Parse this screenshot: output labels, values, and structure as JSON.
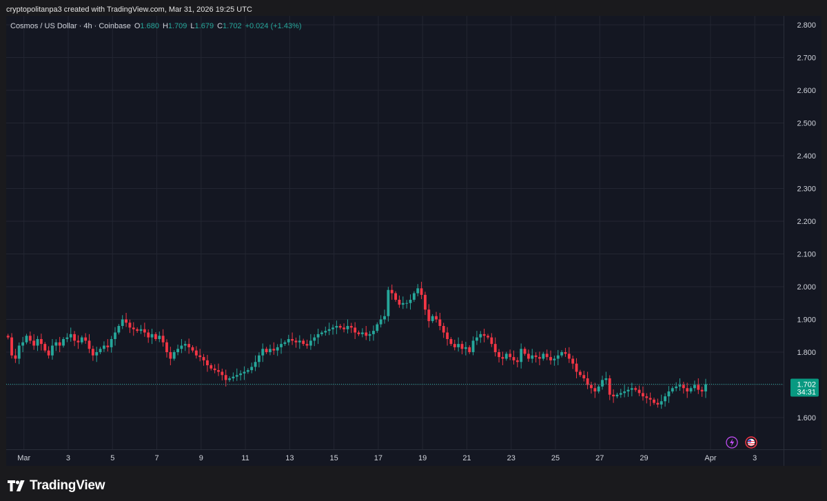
{
  "credit": "cryptopolitanpa3 created with TradingView.com, Mar 31, 2026 19:25 UTC",
  "brand": "TradingView",
  "icons": {
    "logo": "tradingview-logo-icon",
    "flash": "lightning-icon",
    "flag": "us-flag-icon"
  },
  "colors": {
    "up": "#26a69a",
    "down": "#f23645",
    "bg": "#141722",
    "grid": "#232632",
    "text": "#d1d4dc",
    "muted": "#b2b5be",
    "price_label_bg": "#089981",
    "flash": "#c04cf2",
    "flag": "#f23645"
  },
  "legend": {
    "symbol": "Cosmos / US Dollar · 4h · Coinbase",
    "o_label": "O",
    "o_value": "1.680",
    "h_label": "H",
    "h_value": "1.709",
    "l_label": "L",
    "l_value": "1.679",
    "c_label": "C",
    "c_value": "1.702",
    "change": "+0.024 (+1.43%)"
  },
  "price_label": {
    "price": "1.702",
    "countdown": "34:31"
  },
  "chart_data": {
    "type": "candlestick",
    "y_ticks": [
      "2.800",
      "2.700",
      "2.600",
      "2.500",
      "2.400",
      "2.300",
      "2.200",
      "2.100",
      "2.000",
      "1.900",
      "1.800",
      "1.700",
      "1.600"
    ],
    "ylim": [
      1.5,
      2.81
    ],
    "x_ticks": [
      "Mar",
      "3",
      "5",
      "7",
      "9",
      "11",
      "13",
      "15",
      "17",
      "19",
      "21",
      "23",
      "25",
      "27",
      "29",
      "Apr",
      "3"
    ],
    "x_tick_days": [
      1,
      3,
      5,
      7,
      9,
      11,
      13,
      15,
      17,
      19,
      21,
      23,
      25,
      27,
      29,
      32,
      34
    ],
    "x_day_start": 0.2,
    "x_day_end": 35.3,
    "current_price": 1.702,
    "candles_per_day": 6,
    "closes": [
      1.845,
      1.79,
      1.78,
      1.82,
      1.83,
      1.85,
      1.835,
      1.82,
      1.84,
      1.825,
      1.805,
      1.79,
      1.82,
      1.83,
      1.82,
      1.84,
      1.845,
      1.855,
      1.835,
      1.83,
      1.845,
      1.835,
      1.81,
      1.79,
      1.8,
      1.81,
      1.82,
      1.815,
      1.84,
      1.86,
      1.88,
      1.9,
      1.89,
      1.875,
      1.87,
      1.865,
      1.87,
      1.86,
      1.845,
      1.855,
      1.84,
      1.85,
      1.83,
      1.8,
      1.78,
      1.8,
      1.81,
      1.82,
      1.825,
      1.815,
      1.805,
      1.79,
      1.785,
      1.775,
      1.76,
      1.75,
      1.745,
      1.74,
      1.73,
      1.715,
      1.72,
      1.725,
      1.73,
      1.735,
      1.74,
      1.745,
      1.755,
      1.77,
      1.79,
      1.81,
      1.8,
      1.81,
      1.805,
      1.815,
      1.825,
      1.83,
      1.84,
      1.835,
      1.83,
      1.835,
      1.825,
      1.82,
      1.835,
      1.845,
      1.855,
      1.86,
      1.865,
      1.87,
      1.875,
      1.88,
      1.875,
      1.87,
      1.88,
      1.875,
      1.86,
      1.855,
      1.86,
      1.85,
      1.855,
      1.865,
      1.885,
      1.9,
      1.91,
      1.99,
      1.98,
      1.96,
      1.945,
      1.95,
      1.95,
      1.96,
      1.98,
      1.995,
      1.975,
      1.93,
      1.895,
      1.91,
      1.9,
      1.88,
      1.86,
      1.84,
      1.825,
      1.815,
      1.825,
      1.81,
      1.815,
      1.8,
      1.835,
      1.845,
      1.855,
      1.85,
      1.845,
      1.825,
      1.8,
      1.785,
      1.78,
      1.795,
      1.785,
      1.775,
      1.77,
      1.81,
      1.795,
      1.78,
      1.79,
      1.785,
      1.78,
      1.795,
      1.785,
      1.775,
      1.78,
      1.79,
      1.8,
      1.795,
      1.78,
      1.765,
      1.74,
      1.73,
      1.72,
      1.7,
      1.69,
      1.68,
      1.695,
      1.715,
      1.72,
      1.67,
      1.665,
      1.67,
      1.675,
      1.68,
      1.685,
      1.69,
      1.685,
      1.675,
      1.665,
      1.66,
      1.655,
      1.645,
      1.64,
      1.65,
      1.665,
      1.68,
      1.69,
      1.695,
      1.7,
      1.69,
      1.68,
      1.69,
      1.7,
      1.685,
      1.68,
      1.702
    ]
  }
}
